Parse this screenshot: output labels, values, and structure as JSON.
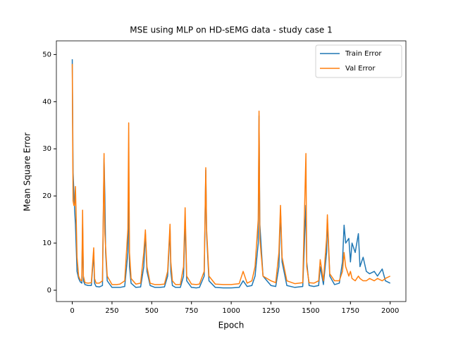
{
  "chart_data": {
    "type": "line",
    "title": "MSE using MLP on HD-sEMG data - study case 1",
    "x_label": "Epoch",
    "y_label": "Mean Square Error",
    "x": [
      0,
      5,
      10,
      15,
      20,
      25,
      30,
      40,
      50,
      60,
      65,
      70,
      80,
      100,
      120,
      135,
      140,
      150,
      170,
      190,
      200,
      205,
      210,
      220,
      250,
      280,
      300,
      330,
      350,
      355,
      360,
      370,
      400,
      430,
      450,
      460,
      470,
      490,
      520,
      550,
      580,
      600,
      615,
      620,
      630,
      650,
      680,
      700,
      710,
      720,
      750,
      780,
      800,
      830,
      840,
      845,
      860,
      900,
      950,
      1000,
      1050,
      1075,
      1100,
      1130,
      1150,
      1170,
      1175,
      1180,
      1200,
      1250,
      1280,
      1300,
      1310,
      1320,
      1350,
      1400,
      1450,
      1470,
      1475,
      1490,
      1520,
      1550,
      1560,
      1580,
      1600,
      1605,
      1620,
      1650,
      1680,
      1700,
      1710,
      1720,
      1740,
      1750,
      1760,
      1780,
      1800,
      1810,
      1830,
      1850,
      1870,
      1900,
      1920,
      1950,
      1970,
      2000
    ],
    "series": [
      {
        "name": "Train Error",
        "color": "#1f77b4",
        "values": [
          49,
          25,
          21,
          17,
          14,
          9,
          4,
          2.5,
          1.8,
          1.5,
          14,
          2,
          1.2,
          1,
          1,
          8,
          1.5,
          0.8,
          0.7,
          1,
          28,
          20,
          8,
          2,
          0.6,
          0.6,
          0.6,
          0.8,
          8,
          24,
          5,
          1.5,
          0.6,
          0.7,
          5,
          12,
          4,
          1,
          0.6,
          0.6,
          0.7,
          3,
          13,
          4,
          1,
          0.6,
          0.6,
          3,
          15,
          2,
          0.6,
          0.5,
          0.6,
          3,
          25.5,
          12,
          2,
          0.6,
          0.5,
          0.5,
          0.6,
          2,
          0.8,
          1,
          3,
          10,
          37,
          14,
          3,
          1,
          0.8,
          5,
          17,
          6,
          1,
          0.6,
          0.8,
          18,
          6,
          1,
          0.8,
          1,
          5,
          1.2,
          8,
          15,
          3,
          1.2,
          1.5,
          6,
          13.8,
          10,
          11,
          6,
          10,
          8,
          12,
          5,
          7,
          4,
          3.5,
          4,
          3,
          4.5,
          2,
          1.5
        ]
      },
      {
        "name": "Val Error",
        "color": "#ff7f0e",
        "values": [
          48,
          19,
          18,
          18,
          22,
          15,
          7,
          3,
          2.2,
          2,
          17,
          3,
          1.6,
          1.5,
          1.6,
          9,
          2.5,
          1.5,
          1.5,
          2,
          29,
          12,
          9,
          3,
          1.2,
          1.2,
          1.3,
          2,
          13,
          35.5,
          8,
          2.5,
          1.3,
          1.5,
          8,
          12.8,
          5,
          1.5,
          1.2,
          1.2,
          1.3,
          4,
          14,
          6,
          2,
          1.2,
          1.2,
          5,
          17.5,
          3,
          1.3,
          1.2,
          1.3,
          4,
          26,
          13,
          3,
          1.3,
          1.2,
          1.2,
          1.4,
          4,
          1.5,
          2,
          5,
          15,
          38,
          11,
          3,
          2,
          1.6,
          8,
          18,
          7,
          2,
          1.4,
          1.6,
          29,
          5,
          1.6,
          1.5,
          2,
          6.5,
          2,
          11,
          16,
          3.5,
          2,
          2,
          4,
          8,
          5,
          3,
          4,
          2.5,
          2,
          3,
          2.5,
          2,
          2,
          2.5,
          2,
          2.5,
          2,
          2.5,
          3
        ]
      }
    ],
    "xlim": [
      -99.95,
      2098.95
    ],
    "ylim": [
      -2.4,
      52.9
    ],
    "xticks": [
      0,
      250,
      500,
      750,
      1000,
      1250,
      1500,
      1750,
      2000
    ],
    "yticks": [
      0,
      10,
      20,
      30,
      40,
      50
    ],
    "legend": "upper right"
  }
}
